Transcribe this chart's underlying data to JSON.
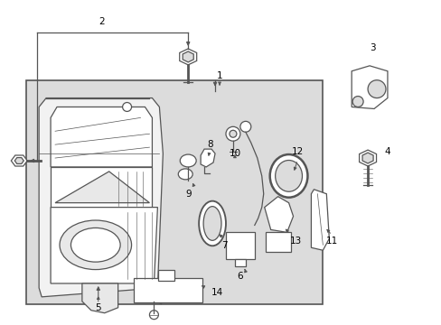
{
  "bg_color": "#ffffff",
  "box_bg": "#e0e0e0",
  "line_color": "#555555",
  "label_color": "#000000",
  "figsize": [
    4.89,
    3.6
  ],
  "dpi": 100
}
